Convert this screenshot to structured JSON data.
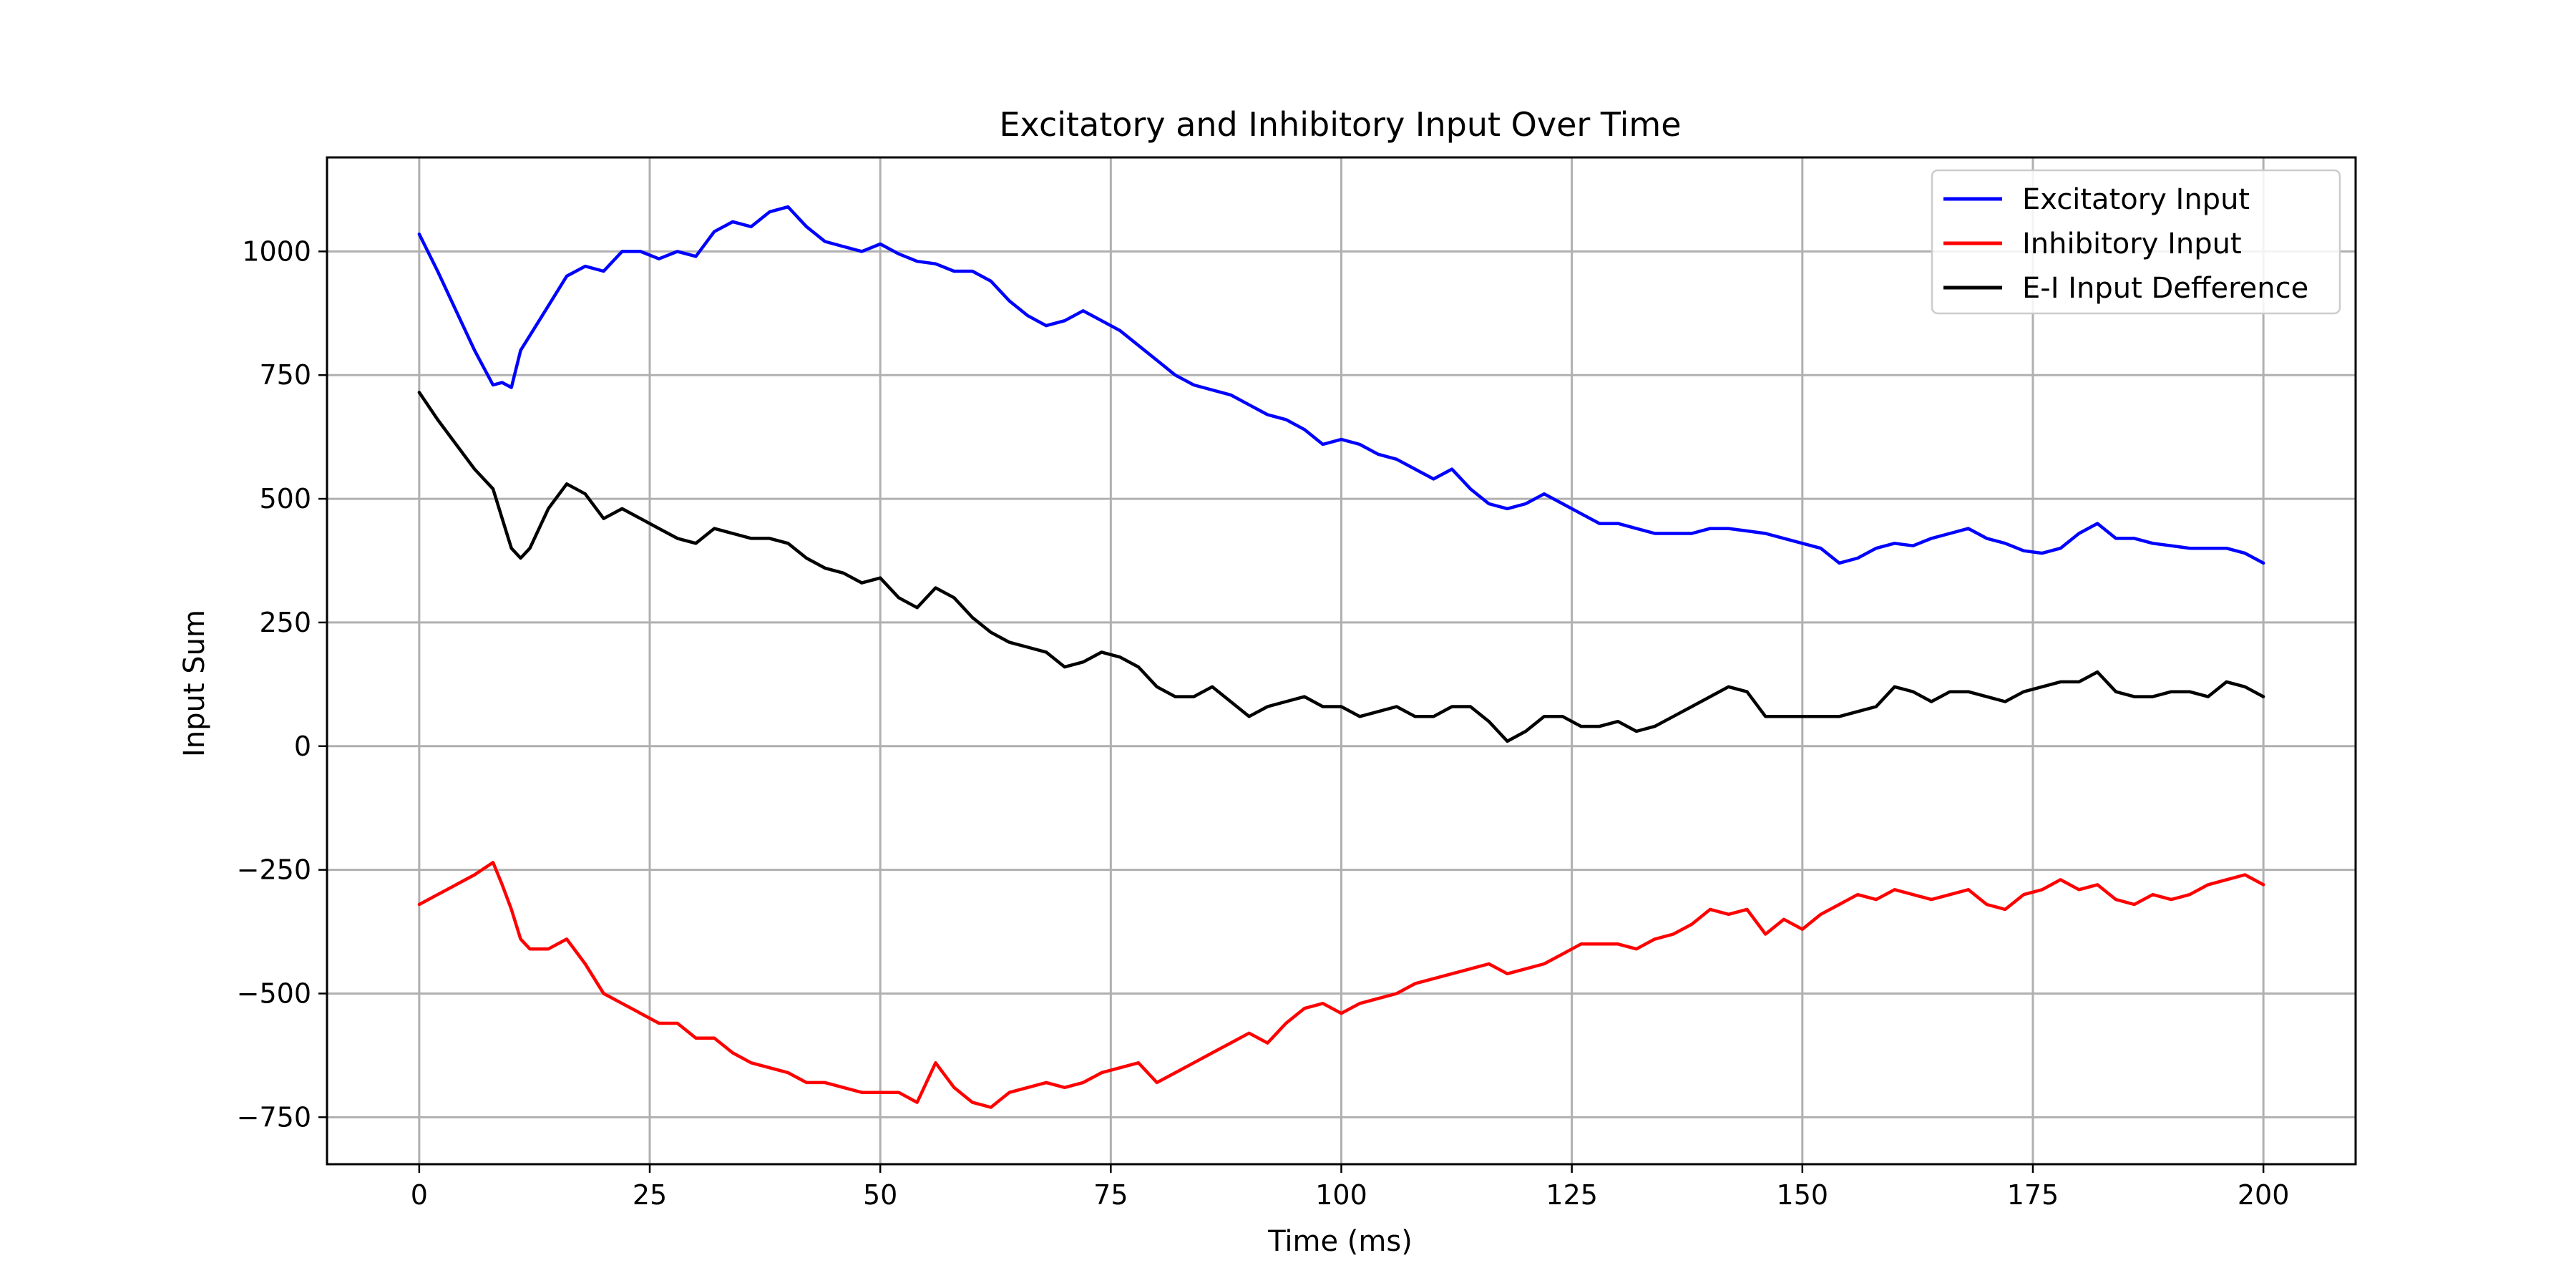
{
  "chart_data": {
    "type": "line",
    "title": "Excitatory and Inhibitory Input Over Time",
    "xlabel": "Time (ms)",
    "ylabel": "Input Sum",
    "xlim": [
      -10,
      210
    ],
    "ylim": [
      -845,
      1190
    ],
    "xticks": [
      0,
      25,
      50,
      75,
      100,
      125,
      150,
      175,
      200
    ],
    "yticks": [
      -750,
      -500,
      -250,
      0,
      250,
      500,
      750,
      1000
    ],
    "grid": true,
    "legend_position": "top-right",
    "series": [
      {
        "name": "Excitatory Input",
        "color": "#0000ff",
        "x": [
          0,
          2,
          4,
          6,
          8,
          9,
          10,
          11,
          12,
          14,
          16,
          18,
          20,
          22,
          24,
          26,
          28,
          30,
          32,
          34,
          36,
          38,
          40,
          42,
          44,
          46,
          48,
          50,
          52,
          54,
          56,
          58,
          60,
          62,
          64,
          66,
          68,
          70,
          72,
          74,
          76,
          78,
          80,
          82,
          84,
          86,
          88,
          90,
          92,
          94,
          96,
          98,
          100,
          102,
          104,
          106,
          108,
          110,
          112,
          114,
          116,
          118,
          120,
          122,
          124,
          126,
          128,
          130,
          132,
          134,
          136,
          138,
          140,
          142,
          144,
          146,
          148,
          150,
          152,
          154,
          156,
          158,
          160,
          162,
          164,
          166,
          168,
          170,
          172,
          174,
          176,
          178,
          180,
          182,
          184,
          186,
          188,
          190,
          192,
          194,
          196,
          198,
          200
        ],
        "y": [
          1035,
          960,
          880,
          800,
          730,
          735,
          725,
          800,
          830,
          890,
          950,
          970,
          960,
          1000,
          1000,
          985,
          1000,
          990,
          1040,
          1060,
          1050,
          1080,
          1090,
          1050,
          1020,
          1010,
          1000,
          1015,
          995,
          980,
          975,
          960,
          960,
          940,
          900,
          870,
          850,
          860,
          880,
          860,
          840,
          810,
          780,
          750,
          730,
          720,
          710,
          690,
          670,
          660,
          640,
          610,
          620,
          610,
          590,
          580,
          560,
          540,
          560,
          520,
          490,
          480,
          490,
          510,
          490,
          470,
          450,
          450,
          440,
          430,
          430,
          430,
          440,
          440,
          435,
          430,
          420,
          410,
          400,
          370,
          380,
          400,
          410,
          405,
          420,
          430,
          440,
          420,
          410,
          395,
          390,
          400,
          430,
          450,
          420,
          420,
          410,
          405,
          400,
          400,
          400,
          390,
          370
        ]
      },
      {
        "name": "Inhibitory Input",
        "color": "#ff0000",
        "x": [
          0,
          2,
          4,
          6,
          8,
          9,
          10,
          11,
          12,
          14,
          16,
          18,
          20,
          22,
          24,
          26,
          28,
          30,
          32,
          34,
          36,
          38,
          40,
          42,
          44,
          46,
          48,
          50,
          52,
          54,
          56,
          58,
          60,
          62,
          64,
          66,
          68,
          70,
          72,
          74,
          76,
          78,
          80,
          82,
          84,
          86,
          88,
          90,
          92,
          94,
          96,
          98,
          100,
          102,
          104,
          106,
          108,
          110,
          112,
          114,
          116,
          118,
          120,
          122,
          124,
          126,
          128,
          130,
          132,
          134,
          136,
          138,
          140,
          142,
          144,
          146,
          148,
          150,
          152,
          154,
          156,
          158,
          160,
          162,
          164,
          166,
          168,
          170,
          172,
          174,
          176,
          178,
          180,
          182,
          184,
          186,
          188,
          190,
          192,
          194,
          196,
          198,
          200
        ],
        "y": [
          -320,
          -300,
          -280,
          -260,
          -235,
          -280,
          -330,
          -390,
          -410,
          -410,
          -390,
          -440,
          -500,
          -520,
          -540,
          -560,
          -560,
          -590,
          -590,
          -620,
          -640,
          -650,
          -660,
          -680,
          -680,
          -690,
          -700,
          -700,
          -700,
          -720,
          -640,
          -690,
          -720,
          -730,
          -700,
          -690,
          -680,
          -690,
          -680,
          -660,
          -650,
          -640,
          -680,
          -660,
          -640,
          -620,
          -600,
          -580,
          -600,
          -560,
          -530,
          -520,
          -540,
          -520,
          -510,
          -500,
          -480,
          -470,
          -460,
          -450,
          -440,
          -460,
          -450,
          -440,
          -420,
          -400,
          -400,
          -400,
          -410,
          -390,
          -380,
          -360,
          -330,
          -340,
          -330,
          -380,
          -350,
          -370,
          -340,
          -320,
          -300,
          -310,
          -290,
          -300,
          -310,
          -300,
          -290,
          -320,
          -330,
          -300,
          -290,
          -270,
          -290,
          -280,
          -310,
          -320,
          -300,
          -310,
          -300,
          -280,
          -270,
          -260,
          -280
        ]
      },
      {
        "name": "E-I Input Defference",
        "color": "#000000",
        "x": [
          0,
          2,
          4,
          6,
          8,
          9,
          10,
          11,
          12,
          14,
          16,
          18,
          20,
          22,
          24,
          26,
          28,
          30,
          32,
          34,
          36,
          38,
          40,
          42,
          44,
          46,
          48,
          50,
          52,
          54,
          56,
          58,
          60,
          62,
          64,
          66,
          68,
          70,
          72,
          74,
          76,
          78,
          80,
          82,
          84,
          86,
          88,
          90,
          92,
          94,
          96,
          98,
          100,
          102,
          104,
          106,
          108,
          110,
          112,
          114,
          116,
          118,
          120,
          122,
          124,
          126,
          128,
          130,
          132,
          134,
          136,
          138,
          140,
          142,
          144,
          146,
          148,
          150,
          152,
          154,
          156,
          158,
          160,
          162,
          164,
          166,
          168,
          170,
          172,
          174,
          176,
          178,
          180,
          182,
          184,
          186,
          188,
          190,
          192,
          194,
          196,
          198,
          200
        ],
        "y": [
          715,
          660,
          610,
          560,
          520,
          460,
          400,
          380,
          400,
          480,
          530,
          510,
          460,
          480,
          460,
          440,
          420,
          410,
          440,
          430,
          420,
          420,
          410,
          380,
          360,
          350,
          330,
          340,
          300,
          280,
          320,
          300,
          260,
          230,
          210,
          200,
          190,
          160,
          170,
          190,
          180,
          160,
          120,
          100,
          100,
          120,
          90,
          60,
          80,
          90,
          100,
          80,
          80,
          60,
          70,
          80,
          60,
          60,
          80,
          80,
          50,
          10,
          30,
          60,
          60,
          40,
          40,
          50,
          30,
          40,
          60,
          80,
          100,
          120,
          110,
          60,
          60,
          60,
          60,
          60,
          70,
          80,
          120,
          110,
          90,
          110,
          110,
          100,
          90,
          110,
          120,
          130,
          130,
          150,
          110,
          100,
          100,
          110,
          110,
          100,
          130,
          120,
          100
        ]
      }
    ]
  }
}
